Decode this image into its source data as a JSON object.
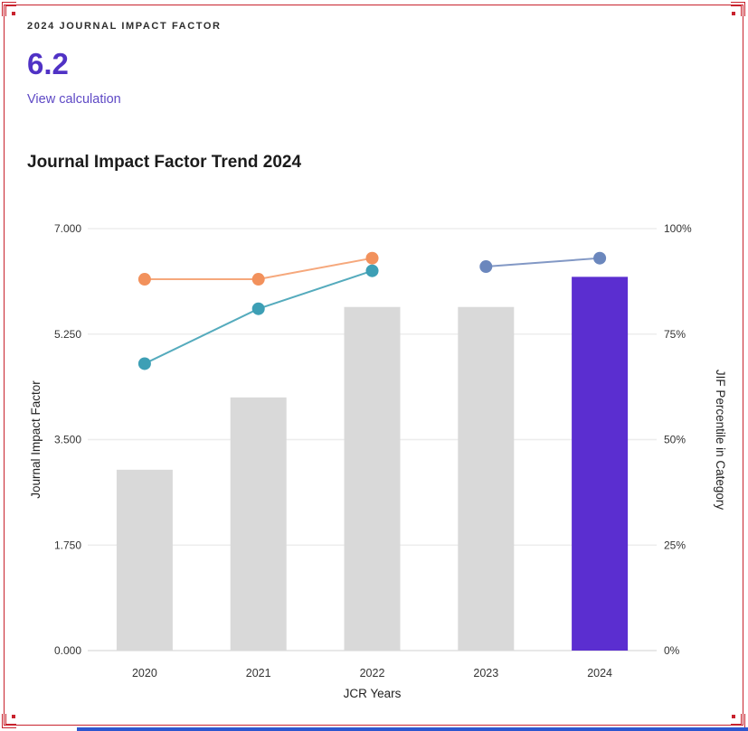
{
  "frame": {
    "color": "#c8222d",
    "bottom_edge_color": "#2d56cf"
  },
  "header": {
    "eyebrow": "2024 JOURNAL IMPACT FACTOR",
    "value": "6.2",
    "value_color": "#5032c5",
    "link_label": "View calculation",
    "link_color": "#5e49c5"
  },
  "chart": {
    "title": "Journal Impact Factor Trend 2024"
  },
  "chart_data": {
    "type": "bar",
    "title": "Journal Impact Factor Trend 2024",
    "categories": [
      "2020",
      "2021",
      "2022",
      "2023",
      "2024"
    ],
    "xlabel": "JCR Years",
    "ylabel": "Journal Impact Factor",
    "y2label": "JIF Percentile in Category",
    "ylim": [
      0,
      7
    ],
    "y2lim": [
      0,
      100
    ],
    "y_ticks": [
      "0.000",
      "1.750",
      "3.500",
      "5.250",
      "7.000"
    ],
    "y2_ticks": [
      "0%",
      "25%",
      "50%",
      "75%",
      "100%"
    ],
    "grid": true,
    "legend": false,
    "bars": {
      "name": "Journal Impact Factor",
      "axis": "left",
      "values": [
        3.0,
        4.2,
        5.7,
        5.7,
        6.2
      ],
      "colors": [
        "#d9d9d9",
        "#d9d9d9",
        "#d9d9d9",
        "#d9d9d9",
        "#5b2ed0"
      ]
    },
    "lines": [
      {
        "name": "JIF Percentile in Category - series 1",
        "axis": "right",
        "dot_color": "#f2915c",
        "line_color": "#f6a87c",
        "points": [
          {
            "x": "2020",
            "y": 88
          },
          {
            "x": "2021",
            "y": 88
          },
          {
            "x": "2022",
            "y": 93
          }
        ]
      },
      {
        "name": "JIF Percentile in Category - series 2",
        "axis": "right",
        "dot_color": "#3d9fb5",
        "line_color": "#55abbd",
        "points": [
          {
            "x": "2020",
            "y": 68
          },
          {
            "x": "2021",
            "y": 81
          },
          {
            "x": "2022",
            "y": 90
          }
        ]
      },
      {
        "name": "JIF Percentile in Category - series 3",
        "axis": "right",
        "dot_color": "#6b87bd",
        "line_color": "#8298c5",
        "points": [
          {
            "x": "2023",
            "y": 91
          },
          {
            "x": "2024",
            "y": 93
          }
        ]
      }
    ]
  }
}
